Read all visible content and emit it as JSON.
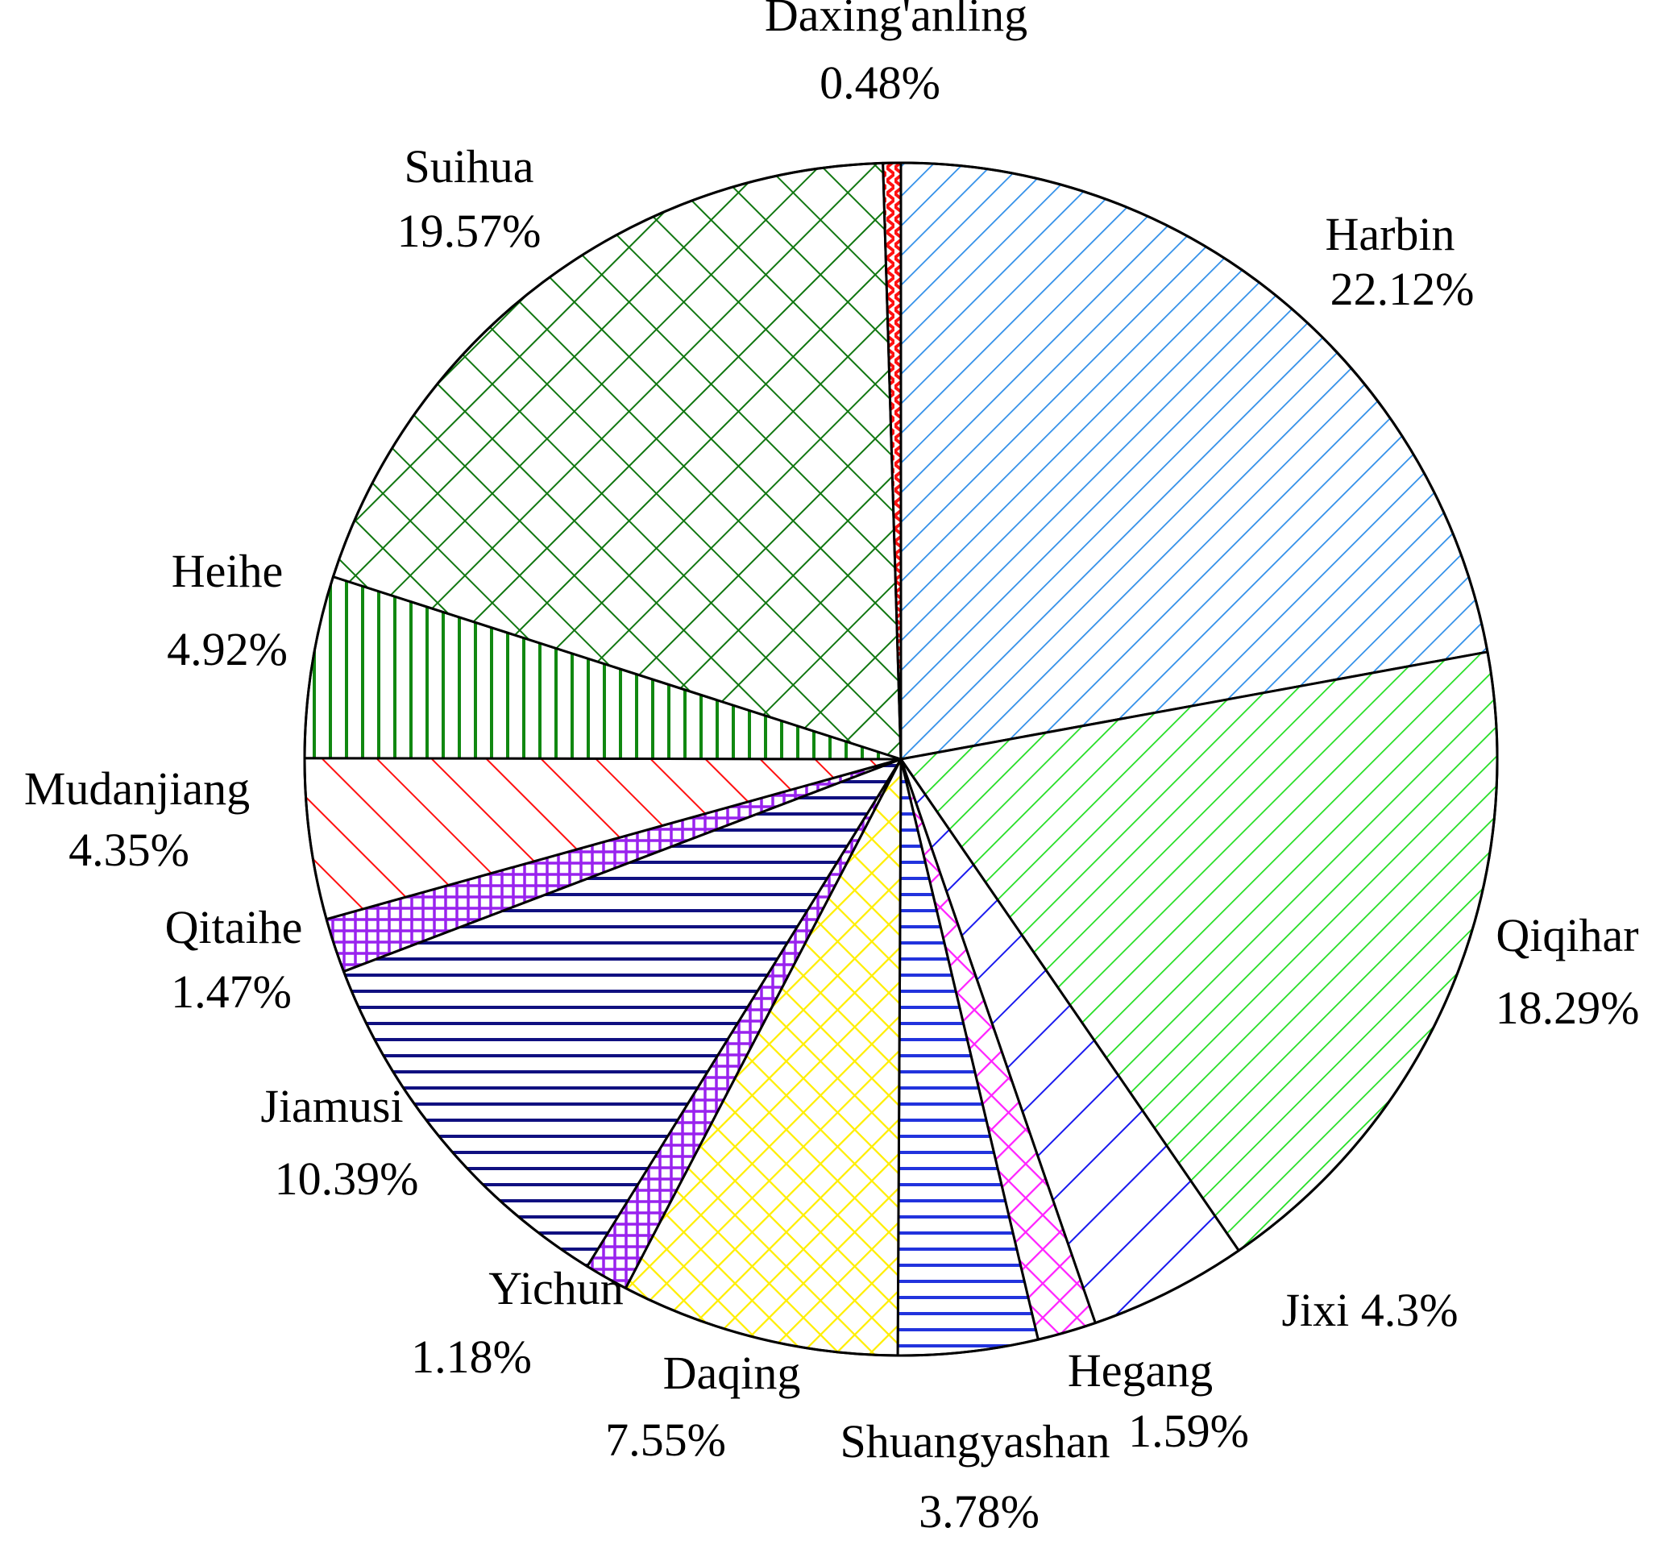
{
  "chart_data": {
    "type": "pie",
    "title": "",
    "start_angle_deg": 90,
    "direction": "clockwise",
    "slices": [
      {
        "label": "Harbin",
        "value_text": "22.12%",
        "value": 22.12,
        "color": "#2f8ee8",
        "pattern": "diagonal-down"
      },
      {
        "label": "Qiqihar",
        "value_text": "18.29%",
        "value": 18.29,
        "color": "#22dd22",
        "pattern": "diagonal-down"
      },
      {
        "label": "Jixi",
        "value_text": "4.3%",
        "value": 4.3,
        "color": "#1a1aee",
        "pattern": "diagonal-down-wide"
      },
      {
        "label": "Hegang",
        "value_text": "1.59%",
        "value": 1.59,
        "color": "#ff22ff",
        "pattern": "crosshatch-diagonal"
      },
      {
        "label": "Shuangyashan",
        "value_text": "3.78%",
        "value": 3.78,
        "color": "#2233dd",
        "pattern": "horizontal"
      },
      {
        "label": "Daqing",
        "value_text": "7.55%",
        "value": 7.55,
        "color": "#ffee00",
        "pattern": "crosshatch-diagonal"
      },
      {
        "label": "Yichun",
        "value_text": "1.18%",
        "value": 1.18,
        "color": "#9922ee",
        "pattern": "grid"
      },
      {
        "label": "Jiamusi",
        "value_text": "10.39%",
        "value": 10.39,
        "color": "#101080",
        "pattern": "horizontal"
      },
      {
        "label": "Qitaihe",
        "value_text": "1.47%",
        "value": 1.47,
        "color": "#9922ee",
        "pattern": "grid"
      },
      {
        "label": "Mudanjiang",
        "value_text": "4.35%",
        "value": 4.35,
        "color": "#ff1111",
        "pattern": "diagonal-up"
      },
      {
        "label": "Heihe",
        "value_text": "4.92%",
        "value": 4.92,
        "color": "#118811",
        "pattern": "vertical"
      },
      {
        "label": "Suihua",
        "value_text": "19.57%",
        "value": 19.57,
        "color": "#117711",
        "pattern": "crosshatch-diagonal-wide"
      },
      {
        "label": "Daxing'anling",
        "value_text": "0.48%",
        "value": 0.48,
        "color": "#ff1111",
        "pattern": "zigzag"
      }
    ]
  }
}
